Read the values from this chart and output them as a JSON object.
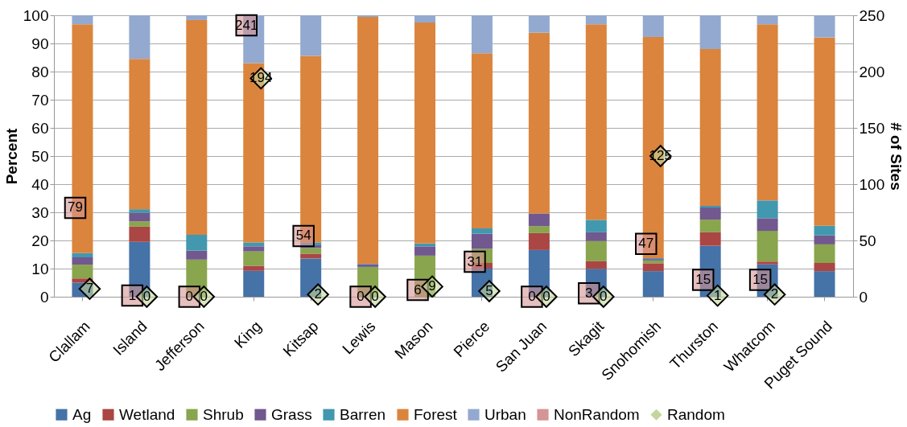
{
  "chart_data": {
    "type": "bar",
    "stacked": true,
    "ylabel": "Percent",
    "y2label": "# of Sites",
    "categories": [
      "Clallam",
      "Island",
      "Jefferson",
      "King",
      "Kitsap",
      "Lewis",
      "Mason",
      "Pierce",
      "San Juan",
      "Skagit",
      "Snohomish",
      "Thurston",
      "Whatcom",
      "Puget Sound"
    ],
    "series": [
      {
        "name": "Ag",
        "color": "#4572a7",
        "values": [
          5,
          19.5,
          0,
          9.2,
          13.6,
          0,
          0,
          10,
          16.6,
          9.9,
          9.1,
          18.1,
          11.5,
          9.1
        ]
      },
      {
        "name": "Wetland",
        "color": "#aa4643",
        "values": [
          1.5,
          5.4,
          0,
          1.8,
          1.7,
          0,
          0,
          2,
          6,
          2.7,
          2.8,
          4.8,
          1,
          2.9
        ]
      },
      {
        "name": "Shrub",
        "color": "#89a54e",
        "values": [
          4.9,
          1.9,
          13.2,
          5.1,
          2,
          10.6,
          14.6,
          5,
          2.5,
          7.2,
          1,
          4.5,
          10.9,
          6.6
        ]
      },
      {
        "name": "Grass",
        "color": "#71588f",
        "values": [
          2.6,
          3,
          3.2,
          1.8,
          1,
          0.9,
          3.3,
          5.4,
          4.5,
          3.1,
          0.5,
          4.3,
          4.5,
          3.2
        ]
      },
      {
        "name": "Barren",
        "color": "#4198af",
        "values": [
          1.5,
          1.3,
          5.6,
          1.4,
          1,
          0.2,
          1,
          1.9,
          null,
          4.4,
          0.3,
          0.6,
          6.3,
          3.4
        ]
      },
      {
        "name": "Forest",
        "color": "#db843d",
        "values": [
          81.3,
          53.4,
          76.3,
          63.7,
          66.3,
          87.7,
          78.5,
          62.2,
          64.2,
          69.5,
          78.6,
          55.7,
          62.6,
          66.9
        ]
      },
      {
        "name": "Urban",
        "color": "#93a9cf",
        "values": [
          3.2,
          15.5,
          1.7,
          17,
          14.4,
          0.6,
          2.6,
          13.5,
          6,
          3.2,
          7.7,
          12,
          3.2,
          7.9
        ]
      },
      {
        "name": "NonRandom",
        "type": "scatter",
        "axis": "y2",
        "marker": "square",
        "color": "#d59595",
        "values": [
          79,
          1,
          0,
          241,
          54,
          0,
          6,
          31,
          0,
          3,
          47,
          15,
          15,
          null
        ],
        "value_labels": [
          "79",
          "1",
          "0",
          "241",
          "54",
          "0",
          "6",
          "31",
          "0",
          "3",
          "47",
          "15",
          "15",
          null
        ]
      },
      {
        "name": "Random",
        "type": "scatter",
        "axis": "y2",
        "marker": "diamond",
        "color": "#c3d69b",
        "values": [
          7,
          0,
          0,
          194,
          2,
          0,
          9,
          5,
          0,
          0,
          125,
          1,
          2,
          null
        ],
        "value_labels": [
          "7",
          "0",
          "0",
          "194",
          "2",
          "0",
          "9",
          "5",
          "0",
          "0",
          "125",
          "1",
          "2",
          null
        ]
      }
    ],
    "ylim": [
      0,
      100
    ],
    "yticks": [
      0,
      10,
      20,
      30,
      40,
      50,
      60,
      70,
      80,
      90,
      100
    ],
    "y2lim": [
      0,
      250
    ],
    "y2ticks": [
      0,
      50,
      100,
      150,
      200,
      250
    ],
    "grid": "y",
    "legend": "bottom"
  }
}
